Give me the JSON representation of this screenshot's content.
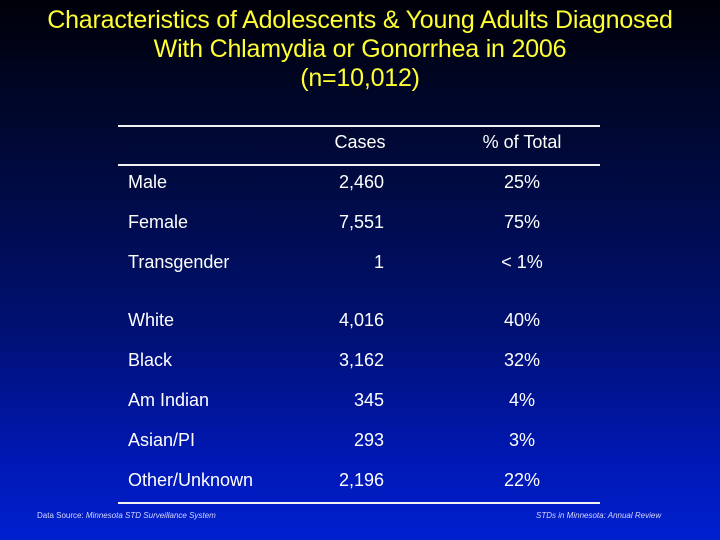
{
  "title": {
    "line1": "Characteristics of Adolescents & Young Adults Diagnosed",
    "line2": "With Chlamydia or Gonorrhea in 2006",
    "line3": "(n=10,012)"
  },
  "table": {
    "headers": {
      "label": "",
      "cases": "Cases",
      "percent": "% of Total"
    },
    "rows": [
      {
        "label": "Male",
        "cases": "2,460",
        "percent": "25%"
      },
      {
        "label": "Female",
        "cases": "7,551",
        "percent": "75%"
      },
      {
        "label": "Transgender",
        "cases": "1",
        "percent": "< 1%"
      },
      {
        "label": "White",
        "cases": "4,016",
        "percent": "40%"
      },
      {
        "label": "Black",
        "cases": "3,162",
        "percent": "32%"
      },
      {
        "label": "Am Indian",
        "cases": "345",
        "percent": "4%"
      },
      {
        "label": "Asian/PI",
        "cases": "293",
        "percent": "3%"
      },
      {
        "label": "Other/Unknown",
        "cases": "2,196",
        "percent": "22%"
      }
    ]
  },
  "footer": {
    "source_prefix": "Data Source: ",
    "source_name": "Minnesota STD Surveillance System",
    "report": "STDs in Minnesota: Annual Review"
  },
  "colors": {
    "title": "#ffff33",
    "text": "#ffffff",
    "background_top": "#000008",
    "background_bottom": "#0020d0"
  }
}
